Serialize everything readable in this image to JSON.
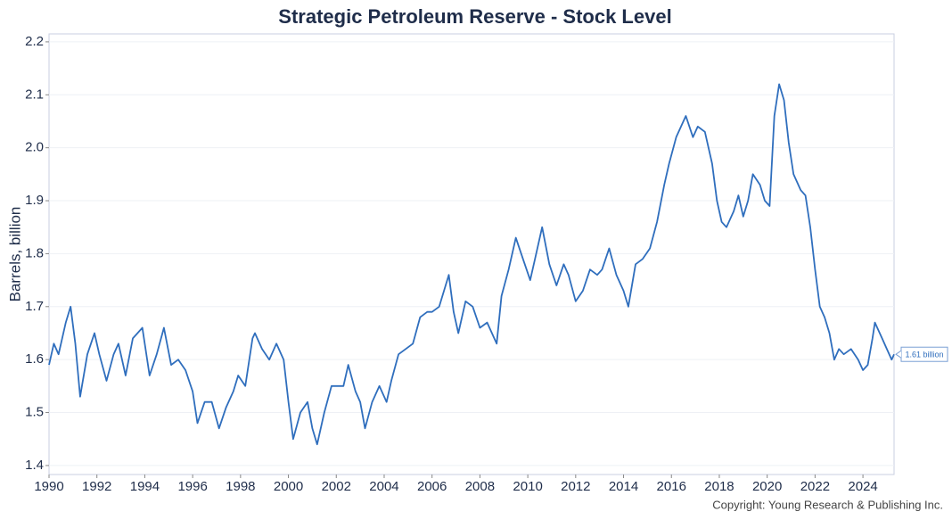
{
  "chart_data": {
    "type": "line",
    "title": "Strategic Petroleum Reserve - Stock Level",
    "y_label": "Barrels, billion",
    "annotation": "1.61 billion",
    "source": "Copyright: Young Research & Publishing Inc.",
    "color": "#2f6ebd",
    "grid": true,
    "xlim": [
      1990,
      2025.3
    ],
    "ylim": [
      1.383,
      2.215
    ],
    "xticks": [
      1990,
      1992,
      1994,
      1996,
      1998,
      2000,
      2002,
      2004,
      2006,
      2008,
      2010,
      2012,
      2014,
      2016,
      2018,
      2020,
      2022,
      2024
    ],
    "yticks": [
      1.4,
      1.5,
      1.6,
      1.7,
      1.8,
      1.9,
      {
        "value": 2,
        "label": "2.0"
      },
      2.1,
      2.2
    ],
    "x": [
      1990.0,
      1990.2,
      1990.4,
      1990.7,
      1990.9,
      1991.1,
      1991.3,
      1991.6,
      1991.9,
      1992.1,
      1992.4,
      1992.7,
      1992.9,
      1993.2,
      1993.5,
      1993.9,
      1994.2,
      1994.5,
      1994.8,
      1995.1,
      1995.4,
      1995.7,
      1996.0,
      1996.2,
      1996.5,
      1996.8,
      1997.1,
      1997.4,
      1997.7,
      1997.9,
      1998.2,
      1998.5,
      1998.6,
      1998.9,
      1999.2,
      1999.5,
      1999.8,
      2000.0,
      2000.2,
      2000.5,
      2000.8,
      2001.0,
      2001.2,
      2001.5,
      2001.8,
      2002.1,
      2002.3,
      2002.5,
      2002.8,
      2003.0,
      2003.2,
      2003.5,
      2003.8,
      2004.1,
      2004.3,
      2004.6,
      2004.9,
      2005.2,
      2005.5,
      2005.8,
      2006.0,
      2006.3,
      2006.7,
      2006.9,
      2007.1,
      2007.4,
      2007.7,
      2008.0,
      2008.3,
      2008.7,
      2008.9,
      2009.2,
      2009.5,
      2009.8,
      2010.1,
      2010.3,
      2010.6,
      2010.9,
      2011.2,
      2011.5,
      2011.7,
      2012.0,
      2012.3,
      2012.6,
      2012.9,
      2013.1,
      2013.4,
      2013.7,
      2014.0,
      2014.2,
      2014.5,
      2014.8,
      2015.1,
      2015.4,
      2015.7,
      2015.9,
      2016.2,
      2016.4,
      2016.6,
      2016.9,
      2017.1,
      2017.4,
      2017.7,
      2017.9,
      2018.1,
      2018.3,
      2018.6,
      2018.8,
      2019.0,
      2019.2,
      2019.4,
      2019.7,
      2019.9,
      2020.1,
      2020.3,
      2020.5,
      2020.7,
      2020.9,
      2021.1,
      2021.4,
      2021.6,
      2021.8,
      2022.0,
      2022.2,
      2022.4,
      2022.6,
      2022.8,
      2023.0,
      2023.2,
      2023.5,
      2023.8,
      2024.0,
      2024.2,
      2024.4,
      2024.5,
      2024.8,
      2025.0,
      2025.2,
      2025.3
    ],
    "values": [
      1.59,
      1.63,
      1.61,
      1.67,
      1.7,
      1.63,
      1.53,
      1.61,
      1.65,
      1.61,
      1.56,
      1.61,
      1.63,
      1.57,
      1.64,
      1.66,
      1.57,
      1.61,
      1.66,
      1.59,
      1.6,
      1.58,
      1.54,
      1.48,
      1.52,
      1.52,
      1.47,
      1.51,
      1.54,
      1.57,
      1.55,
      1.64,
      1.65,
      1.62,
      1.6,
      1.63,
      1.6,
      1.52,
      1.45,
      1.5,
      1.52,
      1.47,
      1.44,
      1.5,
      1.55,
      1.55,
      1.55,
      1.59,
      1.54,
      1.52,
      1.47,
      1.52,
      1.55,
      1.52,
      1.56,
      1.61,
      1.62,
      1.63,
      1.68,
      1.69,
      1.69,
      1.7,
      1.76,
      1.69,
      1.65,
      1.71,
      1.7,
      1.66,
      1.67,
      1.63,
      1.72,
      1.77,
      1.83,
      1.79,
      1.75,
      1.79,
      1.85,
      1.78,
      1.74,
      1.78,
      1.76,
      1.71,
      1.73,
      1.77,
      1.76,
      1.77,
      1.81,
      1.76,
      1.73,
      1.7,
      1.78,
      1.79,
      1.81,
      1.86,
      1.93,
      1.97,
      2.02,
      2.04,
      2.06,
      2.02,
      2.04,
      2.03,
      1.97,
      1.9,
      1.86,
      1.85,
      1.88,
      1.91,
      1.87,
      1.9,
      1.95,
      1.93,
      1.9,
      1.89,
      2.06,
      2.12,
      2.09,
      2.01,
      1.95,
      1.92,
      1.91,
      1.85,
      1.77,
      1.7,
      1.68,
      1.65,
      1.6,
      1.62,
      1.61,
      1.62,
      1.6,
      1.58,
      1.59,
      1.64,
      1.67,
      1.64,
      1.62,
      1.6,
      1.61
    ]
  }
}
